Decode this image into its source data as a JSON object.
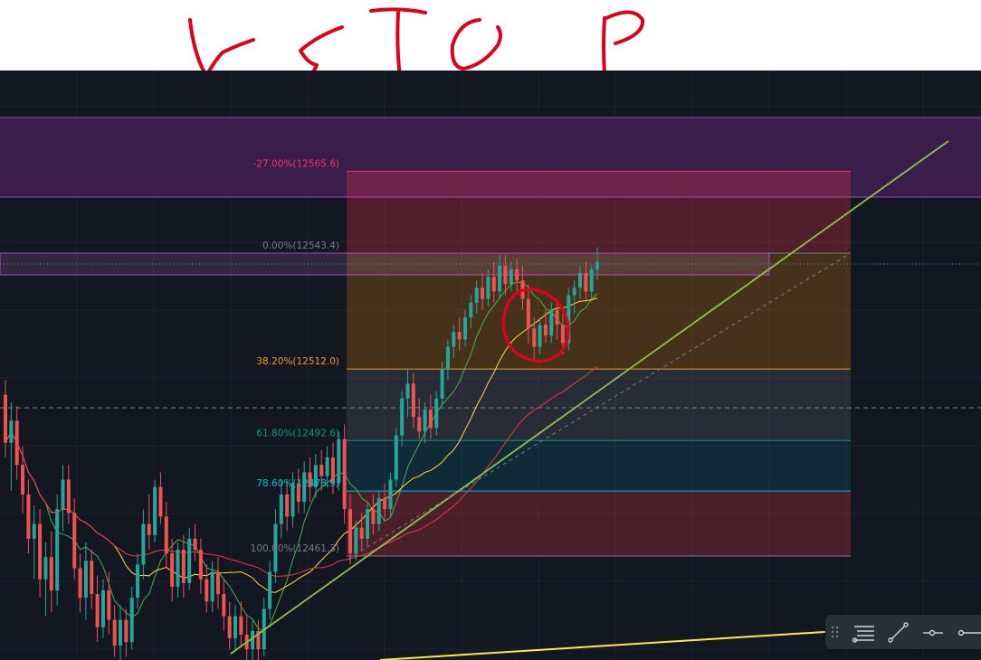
{
  "annotation": {
    "handwritten_text": "u s t o p",
    "ink_color": "#e0001b",
    "circled_feature": "pullback candles near the top of the move"
  },
  "chart_data": {
    "type": "candlestick",
    "title": "",
    "theme": "dark",
    "background": "#131722",
    "grid": true,
    "colors": {
      "bull": "#26a69a",
      "bear": "#ef5350",
      "ma_fast": "#4caf50",
      "ma_mid": "#ffe033",
      "ma_slow": "#e53947",
      "trendline": "#8bc34a",
      "bottom_trendline": "#ffeb3b",
      "supply_zone": "#3b1f4f",
      "supply_zone_border": "#b040d0"
    },
    "fibonacci": {
      "high": 12543.4,
      "low": 12461.3,
      "levels": [
        {
          "ratio": -0.27,
          "label": "-27.00%(12565.6)",
          "price": 12565.6,
          "color": "#f23645"
        },
        {
          "ratio": 0,
          "label": "0.00%(12543.4)",
          "price": 12543.4,
          "color": "#787b86"
        },
        {
          "ratio": 0.382,
          "label": "38.20%(12512.0)",
          "price": 12512.0,
          "color": "#ff9800"
        },
        {
          "ratio": 0.618,
          "label": "61.80%(12492.6)",
          "price": 12492.6,
          "color": "#089981"
        },
        {
          "ratio": 0.786,
          "label": "78.60%(12478.9)",
          "price": 12478.9,
          "color": "#00bcd4"
        },
        {
          "ratio": 1,
          "label": "100.00%(12461.3)",
          "price": 12461.3,
          "color": "#787b86"
        }
      ]
    },
    "candles": [
      [
        12505.0,
        12509.0,
        12488.0,
        12492.0
      ],
      [
        12492.0,
        12503.0,
        12479.0,
        12498.0
      ],
      [
        12498.0,
        12502.0,
        12482.0,
        12486.0
      ],
      [
        12486.0,
        12491.0,
        12473.0,
        12478.0
      ],
      [
        12478.0,
        12482.0,
        12462.0,
        12466.0
      ],
      [
        12466.0,
        12475.0,
        12455.0,
        12470.0
      ],
      [
        12470.0,
        12474.0,
        12450.0,
        12455.0
      ],
      [
        12455.0,
        12465.0,
        12445.0,
        12461.0
      ],
      [
        12461.0,
        12468.0,
        12446.0,
        12452.0
      ],
      [
        12452.0,
        12478.0,
        12448.0,
        12474.0
      ],
      [
        12474.0,
        12486.0,
        12468.0,
        12482.0
      ],
      [
        12482.0,
        12486.0,
        12470.0,
        12473.0
      ],
      [
        12473.0,
        12477.0,
        12455.0,
        12458.0
      ],
      [
        12458.0,
        12462.0,
        12446.0,
        12450.0
      ],
      [
        12450.0,
        12465.0,
        12444.0,
        12460.0
      ],
      [
        12460.0,
        12463.0,
        12447.0,
        12451.0
      ],
      [
        12451.0,
        12456.0,
        12438.0,
        12442.0
      ],
      [
        12442.0,
        12455.0,
        12439.0,
        12452.0
      ],
      [
        12452.0,
        12457.0,
        12440.0,
        12444.0
      ],
      [
        12444.0,
        12448.0,
        12434.0,
        12437.0
      ],
      [
        12437.0,
        12448.0,
        12433.0,
        12444.0
      ],
      [
        12444.0,
        12447.0,
        12434.0,
        12438.0
      ],
      [
        12438.0,
        12453.0,
        12436.0,
        12450.0
      ],
      [
        12450.0,
        12462.0,
        12447.0,
        12459.0
      ],
      [
        12459.0,
        12474.0,
        12455.0,
        12470.0
      ],
      [
        12470.0,
        12478.0,
        12463.0,
        12467.0
      ],
      [
        12467.0,
        12482.0,
        12465.0,
        12480.0
      ],
      [
        12480.0,
        12484.0,
        12470.0,
        12472.0
      ],
      [
        12472.0,
        12476.0,
        12458.0,
        12462.0
      ],
      [
        12462.0,
        12466.0,
        12449.0,
        12453.0
      ],
      [
        12453.0,
        12465.0,
        12450.0,
        12463.0
      ],
      [
        12463.0,
        12467.0,
        12450.0,
        12454.0
      ],
      [
        12454.0,
        12469.0,
        12452.0,
        12466.0
      ],
      [
        12466.0,
        12470.0,
        12460.0,
        12463.0
      ],
      [
        12463.0,
        12466.0,
        12451.0,
        12455.0
      ],
      [
        12455.0,
        12459.0,
        12446.0,
        12449.0
      ],
      [
        12449.0,
        12460.0,
        12446.0,
        12457.0
      ],
      [
        12457.0,
        12461.0,
        12447.0,
        12451.0
      ],
      [
        12451.0,
        12455.0,
        12441.0,
        12445.0
      ],
      [
        12445.0,
        12449.0,
        12436.0,
        12439.0
      ],
      [
        12439.0,
        12448.0,
        12436.0,
        12445.0
      ],
      [
        12445.0,
        12449.0,
        12437.0,
        12440.0
      ],
      [
        12440.0,
        12445.0,
        12431.0,
        12436.0
      ],
      [
        12436.0,
        12444.0,
        12433.0,
        12441.0
      ],
      [
        12441.0,
        12444.0,
        12432.0,
        12436.0
      ],
      [
        12436.0,
        12450.0,
        12434.0,
        12447.0
      ],
      [
        12447.0,
        12460.0,
        12444.0,
        12457.0
      ],
      [
        12457.0,
        12474.0,
        12454.0,
        12470.0
      ],
      [
        12470.0,
        12482.0,
        12466.0,
        12478.0
      ],
      [
        12478.0,
        12482.0,
        12468.0,
        12472.0
      ],
      [
        12472.0,
        12484.0,
        12469.0,
        12481.0
      ],
      [
        12481.0,
        12485.0,
        12473.0,
        12476.0
      ],
      [
        12476.0,
        12487.0,
        12473.0,
        12484.0
      ],
      [
        12484.0,
        12488.0,
        12476.0,
        12480.0
      ],
      [
        12480.0,
        12489.0,
        12477.0,
        12486.0
      ],
      [
        12486.0,
        12490.0,
        12479.0,
        12483.0
      ],
      [
        12483.0,
        12491.0,
        12480.0,
        12488.0
      ],
      [
        12488.0,
        12492.0,
        12478.0,
        12481.0
      ],
      [
        12481.0,
        12495.0,
        12479.0,
        12493.0
      ],
      [
        12493.0,
        12497.0,
        12470.0,
        12474.0
      ],
      [
        12474.0,
        12478.0,
        12459.0,
        12462.0
      ],
      [
        12462.0,
        12471.0,
        12460.0,
        12469.0
      ],
      [
        12469.0,
        12473.0,
        12463.0,
        12466.0
      ],
      [
        12466.0,
        12476.0,
        12464.0,
        12474.0
      ],
      [
        12474.0,
        12478.0,
        12467.0,
        12470.0
      ],
      [
        12470.0,
        12479.0,
        12468.0,
        12477.0
      ],
      [
        12477.0,
        12481.0,
        12471.0,
        12474.0
      ],
      [
        12474.0,
        12484.0,
        12472.0,
        12482.0
      ],
      [
        12482.0,
        12496.0,
        12480.0,
        12494.0
      ],
      [
        12494.0,
        12506.0,
        12491.0,
        12504.0
      ],
      [
        12504.0,
        12512.0,
        12499.0,
        12508.0
      ],
      [
        12508.0,
        12511.0,
        12496.0,
        12499.0
      ],
      [
        12499.0,
        12504.0,
        12493.0,
        12495.0
      ],
      [
        12495.0,
        12503.0,
        12492.0,
        12501.0
      ],
      [
        12501.0,
        12505.0,
        12493.0,
        12496.0
      ],
      [
        12496.0,
        12506.0,
        12494.0,
        12504.0
      ],
      [
        12504.0,
        12514.0,
        12502.0,
        12512.0
      ],
      [
        12512.0,
        12520.0,
        12509.0,
        12518.0
      ],
      [
        12518.0,
        12524.0,
        12515.0,
        12522.0
      ],
      [
        12522.0,
        12526.0,
        12517.0,
        12520.0
      ],
      [
        12520.0,
        12528.0,
        12518.0,
        12526.0
      ],
      [
        12526.0,
        12532.0,
        12523.0,
        12530.0
      ],
      [
        12530.0,
        12536.0,
        12527.0,
        12534.0
      ],
      [
        12534.0,
        12538.0,
        12528.0,
        12531.0
      ],
      [
        12531.0,
        12539.0,
        12529.0,
        12537.0
      ],
      [
        12537.0,
        12541.0,
        12530.0,
        12533.0
      ],
      [
        12533.0,
        12543.0,
        12531.0,
        12540.0
      ],
      [
        12540.0,
        12543.0,
        12532.0,
        12535.0
      ],
      [
        12535.0,
        12541.0,
        12533.0,
        12539.0
      ],
      [
        12539.0,
        12542.0,
        12533.0,
        12536.0
      ],
      [
        12536.0,
        12540.0,
        12528.0,
        12531.0
      ],
      [
        12531.0,
        12535.0,
        12519.0,
        12523.0
      ],
      [
        12523.0,
        12526.0,
        12514.0,
        12518.0
      ],
      [
        12518.0,
        12526.0,
        12516.0,
        12524.0
      ],
      [
        12524.0,
        12528.0,
        12519.0,
        12521.0
      ],
      [
        12521.0,
        12530.0,
        12519.0,
        12528.0
      ],
      [
        12528.0,
        12531.0,
        12520.0,
        12524.0
      ],
      [
        12524.0,
        12527.0,
        12516.0,
        12519.0
      ],
      [
        12519.0,
        12534.0,
        12517.0,
        12532.0
      ],
      [
        12532.0,
        12536.0,
        12527.0,
        12534.0
      ],
      [
        12534.0,
        12540.0,
        12531.0,
        12538.0
      ],
      [
        12538.0,
        12541.0,
        12530.0,
        12533.0
      ],
      [
        12533.0,
        12540.0,
        12531.0,
        12539.0
      ],
      [
        12539.0,
        12545.0,
        12536.0,
        12541.0
      ]
    ]
  },
  "toolbar": {
    "tools": [
      "horizontal-lines-icon",
      "trend-line-icon",
      "ray-line-icon",
      "extended-line-icon"
    ]
  }
}
